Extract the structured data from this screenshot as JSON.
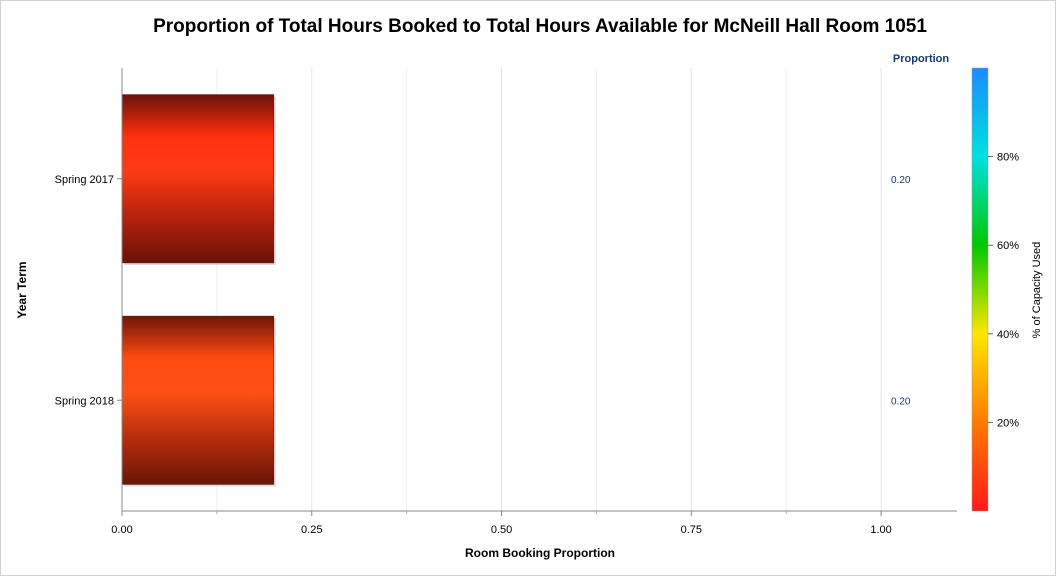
{
  "chart_data": {
    "type": "bar",
    "orientation": "horizontal",
    "title": "Proportion of Total Hours Booked to Total Hours Available for McNeill Hall Room 1051",
    "xlabel": "Room Booking Proportion",
    "ylabel": "Year Term",
    "categories": [
      "Spring 2017",
      "Spring 2018"
    ],
    "values": [
      0.2,
      0.2
    ],
    "value_labels": [
      "0.20",
      "0.20"
    ],
    "value_column_header": "Proportion",
    "xlim": [
      0,
      1.1
    ],
    "x_ticks": [
      0,
      0.25,
      0.5,
      0.75,
      1.0
    ],
    "x_tick_labels": [
      "0.00",
      "0.25",
      "0.50",
      "0.75",
      "1.00"
    ],
    "grid": true,
    "bar_colors": [
      "#ff3010",
      "#ff4a10"
    ],
    "colorbar": {
      "label": "% of Capacity Used",
      "range": [
        0,
        100
      ],
      "ticks": [
        20,
        40,
        60,
        80
      ],
      "tick_labels": [
        "20%",
        "40%",
        "60%",
        "80%"
      ],
      "stops": [
        "#ff1a1a",
        "#ff7a00",
        "#ffe600",
        "#00c800",
        "#00e0e0",
        "#1a8cff"
      ]
    },
    "legend": "right"
  }
}
